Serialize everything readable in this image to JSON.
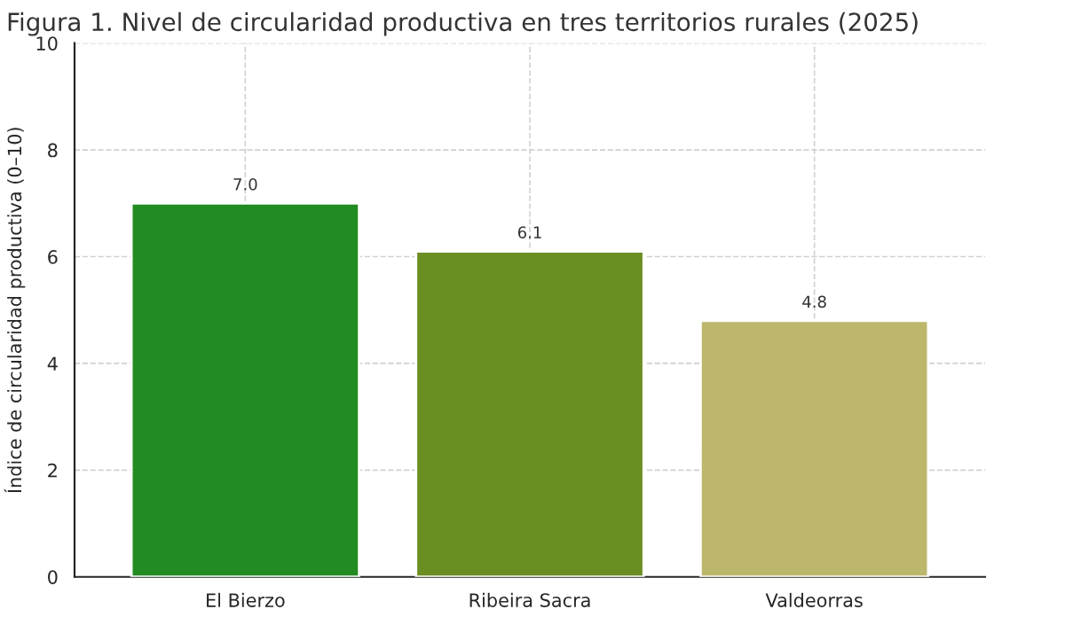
{
  "chart_data": {
    "type": "bar",
    "title": "Figura 1. Nivel de circularidad productiva en tres territorios rurales (2025)",
    "ylabel": "Índice de circularidad productiva (0–10)",
    "categories": [
      "El Bierzo",
      "Ribeira Sacra",
      "Valdeorras"
    ],
    "values": [
      7.0,
      6.1,
      4.8
    ],
    "colors": [
      "#228b22",
      "#6b8e23",
      "#bdb76b"
    ],
    "value_labels": [
      "7.0",
      "6.1",
      "4.8"
    ],
    "ylim": [
      0,
      10
    ],
    "yticks": [
      0,
      2,
      4,
      6,
      8,
      10
    ],
    "grid": true
  }
}
